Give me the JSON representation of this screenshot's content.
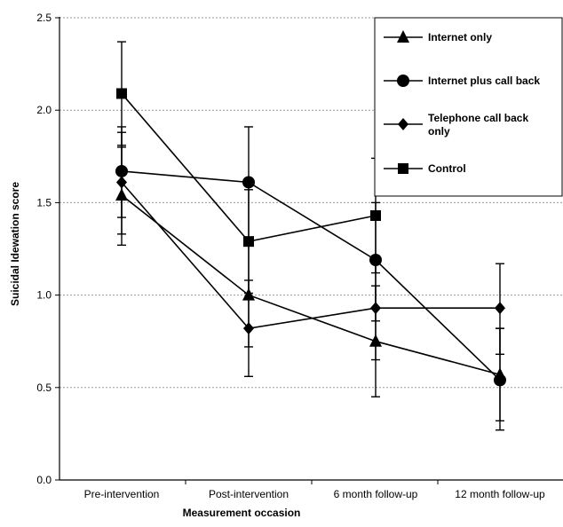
{
  "chart_data": {
    "type": "line",
    "xlabel": "Measurement  occasion",
    "ylabel": "Suicidal  Idewation  score",
    "categories": [
      "Pre-intervention",
      "Post-intervention",
      "6 month follow-up",
      "12 month follow-up"
    ],
    "ylim": [
      0.0,
      2.5
    ],
    "yticks": [
      "0.0",
      "0.5",
      "1.0",
      "1.5",
      "2.0",
      "2.5"
    ],
    "grid": "horizontal dotted",
    "legend_position": "top-right",
    "series": [
      {
        "name": "Internet only",
        "marker": "triangle",
        "values": [
          1.54,
          1.0,
          0.75,
          0.57
        ],
        "error_low": [
          1.27,
          0.72,
          0.45,
          0.32
        ],
        "error_high": [
          1.8,
          1.28,
          1.05,
          0.82
        ]
      },
      {
        "name": "Internet plus call back",
        "marker": "circle",
        "values": [
          1.67,
          1.61,
          1.19,
          0.54
        ],
        "error_low": [
          1.42,
          1.3,
          0.86,
          0.27
        ],
        "error_high": [
          1.91,
          1.91,
          1.5,
          0.82
        ]
      },
      {
        "name": "Telephone call back only",
        "marker": "diamond",
        "values": [
          1.61,
          0.82,
          0.93,
          0.93
        ],
        "error_low": [
          1.33,
          0.56,
          0.65,
          0.68
        ],
        "error_high": [
          1.88,
          1.08,
          1.21,
          1.17
        ]
      },
      {
        "name": "Control",
        "marker": "square",
        "values": [
          2.09,
          1.29,
          1.43,
          null
        ],
        "error_low": [
          1.81,
          1.01,
          1.12,
          null
        ],
        "error_high": [
          2.37,
          1.57,
          1.74,
          null
        ]
      }
    ]
  }
}
